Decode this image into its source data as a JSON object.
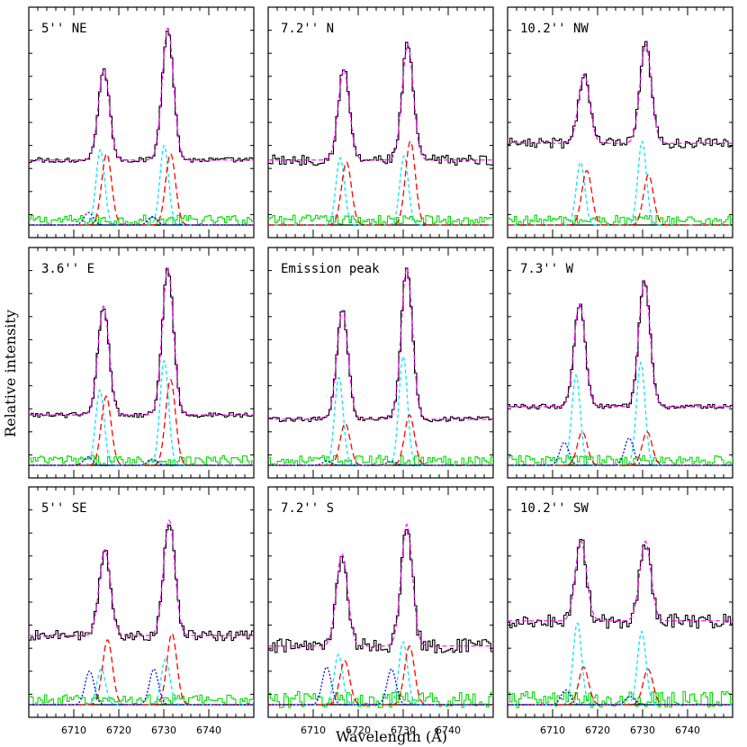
{
  "figure": {
    "ylabel": "Relative intensity",
    "xlabel": "Wavelength (Å)"
  },
  "colors": {
    "data": "#000000",
    "total_fit": "#ff00ff",
    "narrow": "#00e5ff",
    "medium": "#ff0000",
    "broad": "#0000ff",
    "residual": "#00dd00",
    "baseline": "#000000"
  },
  "chart_data": [
    {
      "type": "line",
      "title": "5'' NE",
      "xlim": [
        6700,
        6750
      ],
      "xticks": [
        6710,
        6720,
        6730,
        6740
      ],
      "peaks": [
        {
          "x": 6716.7,
          "y": 0.8
        },
        {
          "x": 6730.9,
          "y": 1.0
        }
      ],
      "continuum": 0.37,
      "components": {
        "narrow": [
          0.36,
          0.38
        ],
        "medium": [
          0.34,
          0.34
        ],
        "broad": [
          0.06,
          0.04
        ]
      },
      "noise": "low"
    },
    {
      "type": "line",
      "title": "7.2'' N",
      "xlim": [
        6700,
        6750
      ],
      "xticks": [
        6710,
        6720,
        6730,
        6740
      ],
      "peaks": [
        {
          "x": 6716.8,
          "y": 0.8
        },
        {
          "x": 6731.0,
          "y": 0.92
        }
      ],
      "continuum": 0.37,
      "components": {
        "narrow": [
          0.32,
          0.33
        ],
        "medium": [
          0.3,
          0.4
        ],
        "broad": [
          0,
          0
        ]
      },
      "noise": "medium"
    },
    {
      "type": "line",
      "title": "10.2'' NW",
      "xlim": [
        6700,
        6750
      ],
      "xticks": [
        6710,
        6720,
        6730,
        6740
      ],
      "peaks": [
        {
          "x": 6717.0,
          "y": 0.78
        },
        {
          "x": 6730.7,
          "y": 0.92
        }
      ],
      "continuum": 0.45,
      "components": {
        "narrow": [
          0.3,
          0.4
        ],
        "medium": [
          0.26,
          0.24
        ],
        "broad": [
          0,
          0
        ]
      },
      "noise": "medium"
    },
    {
      "type": "line",
      "title": "3.6'' E",
      "xlim": [
        6700,
        6750
      ],
      "xticks": [
        6710,
        6720,
        6730,
        6740
      ],
      "peaks": [
        {
          "x": 6716.6,
          "y": 0.82
        },
        {
          "x": 6730.9,
          "y": 1.0
        }
      ],
      "continuum": 0.3,
      "components": {
        "narrow": [
          0.36,
          0.5
        ],
        "medium": [
          0.33,
          0.41
        ],
        "broad": [
          0.04,
          0.03
        ]
      },
      "noise": "low"
    },
    {
      "type": "line",
      "title": "Emission peak",
      "xlim": [
        6700,
        6750
      ],
      "xticks": [
        6710,
        6720,
        6730,
        6740
      ],
      "peaks": [
        {
          "x": 6716.5,
          "y": 0.8
        },
        {
          "x": 6730.8,
          "y": 1.0
        }
      ],
      "continuum": 0.28,
      "components": {
        "narrow": [
          0.42,
          0.52
        ],
        "medium": [
          0.2,
          0.24
        ],
        "broad": [
          0.02,
          0.02
        ]
      },
      "noise": "low"
    },
    {
      "type": "line",
      "title": "7.3'' W",
      "xlim": [
        6700,
        6750
      ],
      "xticks": [
        6710,
        6720,
        6730,
        6740
      ],
      "peaks": [
        {
          "x": 6716.0,
          "y": 0.83
        },
        {
          "x": 6730.4,
          "y": 0.94
        }
      ],
      "continuum": 0.34,
      "components": {
        "narrow": [
          0.43,
          0.49
        ],
        "medium": [
          0.16,
          0.16
        ],
        "broad": [
          0.11,
          0.13
        ]
      },
      "noise": "low"
    },
    {
      "type": "line",
      "title": "5'' SE",
      "xlim": [
        6700,
        6750
      ],
      "xticks": [
        6710,
        6720,
        6730,
        6740
      ],
      "peaks": [
        {
          "x": 6716.9,
          "y": 0.8
        },
        {
          "x": 6731.2,
          "y": 0.94
        }
      ],
      "continuum": 0.39,
      "components": {
        "narrow": [
          0.17,
          0.22
        ],
        "medium": [
          0.31,
          0.34
        ],
        "broad": [
          0.16,
          0.17
        ]
      },
      "noise": "medium"
    },
    {
      "type": "line",
      "title": "7.2'' S",
      "xlim": [
        6700,
        6750
      ],
      "xticks": [
        6710,
        6720,
        6730,
        6740
      ],
      "peaks": [
        {
          "x": 6716.4,
          "y": 0.78
        },
        {
          "x": 6730.8,
          "y": 0.92
        }
      ],
      "continuum": 0.34,
      "components": {
        "narrow": [
          0.24,
          0.3
        ],
        "medium": [
          0.21,
          0.28
        ],
        "broad": [
          0.18,
          0.17
        ]
      },
      "noise": "high"
    },
    {
      "type": "line",
      "title": "10.2'' SW",
      "xlim": [
        6700,
        6750
      ],
      "xticks": [
        6710,
        6720,
        6730,
        6740
      ],
      "peaks": [
        {
          "x": 6716.3,
          "y": 0.84
        },
        {
          "x": 6730.6,
          "y": 0.84
        }
      ],
      "continuum": 0.46,
      "components": {
        "narrow": [
          0.39,
          0.35
        ],
        "medium": [
          0.18,
          0.17
        ],
        "broad": [
          0.07,
          0.04
        ]
      },
      "noise": "high"
    }
  ]
}
